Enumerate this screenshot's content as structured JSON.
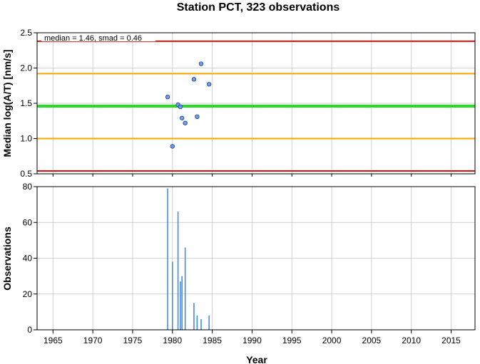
{
  "title": "Station PCT, 323 observations",
  "colors": {
    "point_fill": "#6f9cf0",
    "point_stroke": "#1d3f8a",
    "median_line": "#22dd22",
    "smad_line": "#ffa500",
    "bound_line": "#dd1111",
    "bar": "#3e8ee6",
    "grid": "#c4c4c4"
  },
  "chart_data": [
    {
      "type": "scatter",
      "ylabel": "Median log(A/T) [nm/s]",
      "annotation": "median = 1.46, smad = 0.46",
      "xlim": [
        1963,
        2018
      ],
      "ylim": [
        0.5,
        2.5
      ],
      "yticks": [
        0.5,
        1.0,
        1.5,
        2.0,
        2.5
      ],
      "ytick_labels": [
        "0.5",
        "1.0",
        "1.5",
        "2.0",
        "2.5"
      ],
      "grid": true,
      "hlines": [
        {
          "y": 2.38,
          "color": "red"
        },
        {
          "y": 1.92,
          "color": "orange"
        },
        {
          "y": 1.46,
          "color": "green"
        },
        {
          "y": 1.0,
          "color": "orange"
        },
        {
          "y": 0.54,
          "color": "red"
        }
      ],
      "points": [
        {
          "x": 1979.4,
          "y": 1.59
        },
        {
          "x": 1980.0,
          "y": 0.89
        },
        {
          "x": 1980.7,
          "y": 1.48
        },
        {
          "x": 1981.0,
          "y": 1.45
        },
        {
          "x": 1981.2,
          "y": 1.29
        },
        {
          "x": 1981.6,
          "y": 1.22
        },
        {
          "x": 1982.7,
          "y": 1.84
        },
        {
          "x": 1983.1,
          "y": 1.31
        },
        {
          "x": 1983.6,
          "y": 2.06
        },
        {
          "x": 1984.6,
          "y": 1.77
        }
      ]
    },
    {
      "type": "bar",
      "ylabel": "Observations",
      "xlabel": "Year",
      "xlim": [
        1963,
        2018
      ],
      "ylim": [
        0,
        80
      ],
      "yticks": [
        0,
        20,
        40,
        60,
        80
      ],
      "ytick_labels": [
        "0",
        "20",
        "40",
        "60",
        "80"
      ],
      "xticks": [
        1965,
        1970,
        1975,
        1980,
        1985,
        1990,
        1995,
        2000,
        2005,
        2010,
        2015
      ],
      "xtick_labels": [
        "1965",
        "1970",
        "1975",
        "1980",
        "1985",
        "1990",
        "1995",
        "2000",
        "2005",
        "2010",
        "2015"
      ],
      "grid": true,
      "bars": [
        {
          "x": 1979.4,
          "value": 79
        },
        {
          "x": 1980.0,
          "value": 38
        },
        {
          "x": 1980.7,
          "value": 66
        },
        {
          "x": 1981.0,
          "value": 27
        },
        {
          "x": 1981.2,
          "value": 30
        },
        {
          "x": 1981.6,
          "value": 46
        },
        {
          "x": 1982.7,
          "value": 15
        },
        {
          "x": 1983.1,
          "value": 8
        },
        {
          "x": 1983.6,
          "value": 6
        },
        {
          "x": 1984.6,
          "value": 8
        }
      ]
    }
  ]
}
